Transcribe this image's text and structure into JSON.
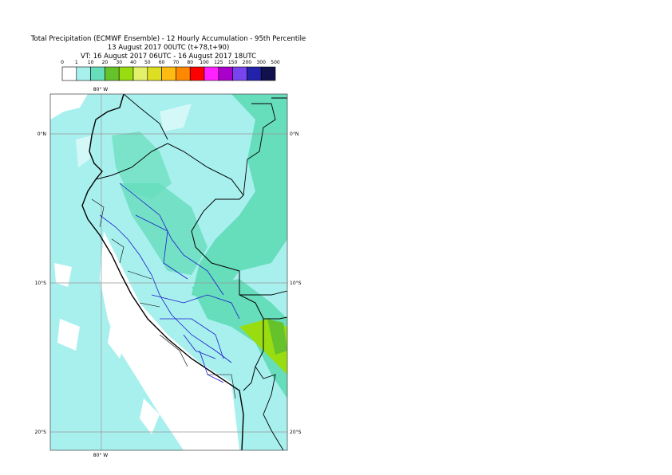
{
  "header": {
    "lines": [
      "Total Precipitation (ECMWF Ensemble) - 12 Hourly Accumulation - 95th Percentile",
      "13 August 2017 00UTC (t+78,t+90)",
      "VT: 16 August 2017 06UTC - 16 August 2017 18UTC"
    ]
  },
  "legend": {
    "labels": [
      "0",
      "1",
      "10",
      "20",
      "30",
      "40",
      "50",
      "60",
      "70",
      "80",
      "100",
      "125",
      "150",
      "200",
      "300",
      "500"
    ],
    "colors": [
      "#ffffff",
      "#a8f0ee",
      "#66ddbb",
      "#66c22a",
      "#99dd11",
      "#e2f06a",
      "#dede22",
      "#ffbb11",
      "#ff8800",
      "#ff0000",
      "#ff22ff",
      "#aa00cc",
      "#7744ee",
      "#2222aa",
      "#11114d"
    ]
  },
  "map": {
    "lon_labels": [
      "80° W"
    ],
    "lat_labels": [
      "0°N",
      "10°S",
      "20°S"
    ]
  }
}
